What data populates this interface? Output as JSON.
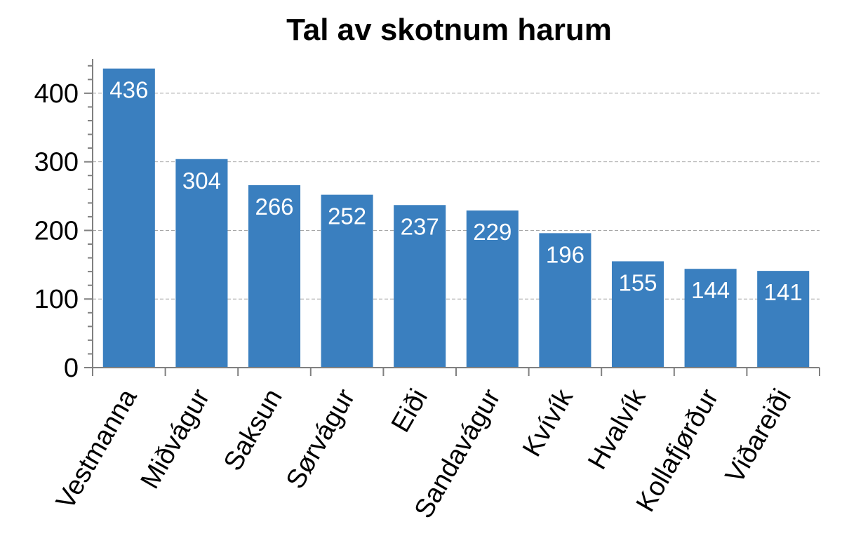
{
  "chart_data": {
    "type": "bar",
    "title": "Tal av skotnum harum",
    "categories": [
      "Vestmanna",
      "Miðvágur",
      "Saksun",
      "Sørvágur",
      "Eiði",
      "Sandavágur",
      "Kvívík",
      "Hvalvík",
      "Kollafjørður",
      "Viðareiði"
    ],
    "values": [
      436,
      304,
      266,
      252,
      237,
      229,
      196,
      155,
      144,
      141
    ],
    "data_labels": [
      "436",
      "304",
      "266",
      "252",
      "237",
      "229",
      "196",
      "155",
      "144",
      "141"
    ],
    "xlabel": "",
    "ylabel": "",
    "ylim": [
      0,
      450
    ],
    "yticks": [
      0,
      100,
      200,
      300,
      400
    ],
    "ytick_labels": [
      "0",
      "100",
      "200",
      "300",
      "400"
    ],
    "grid": true,
    "legend": "none",
    "bar_color": "#3a7fbf"
  }
}
